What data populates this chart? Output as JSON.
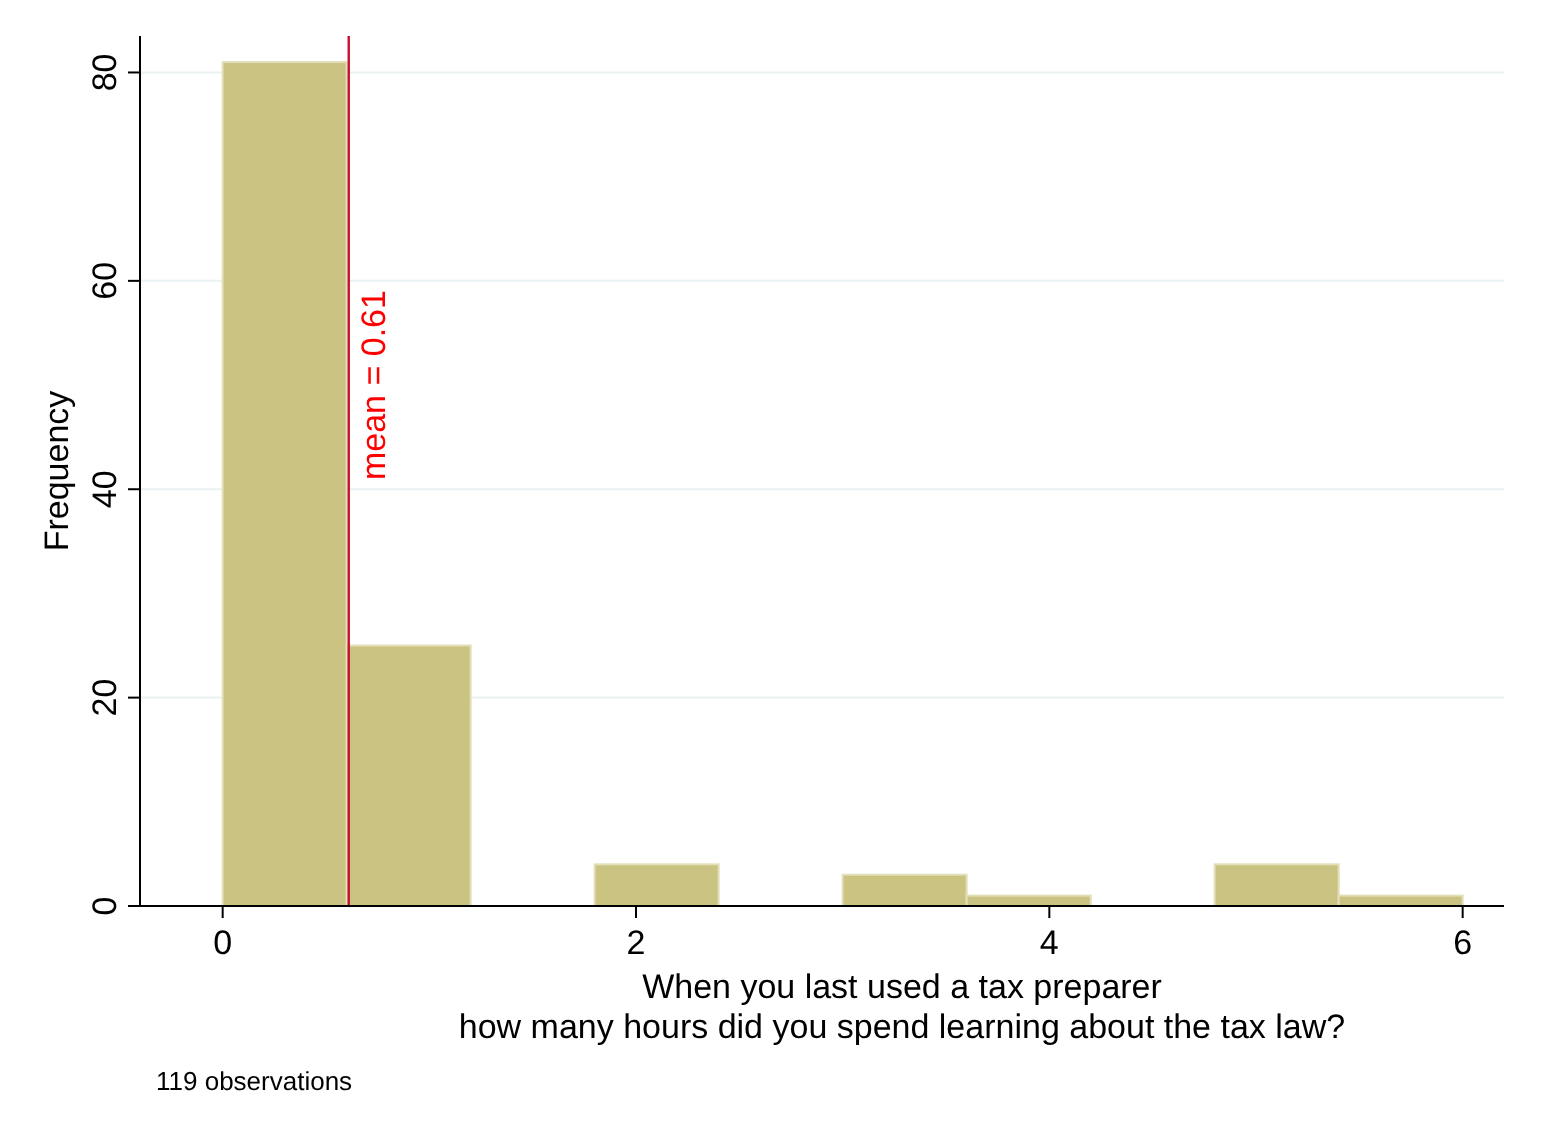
{
  "chart_data": {
    "type": "histogram",
    "ylabel": "Frequency",
    "xlabel": "When you last used a tax preparer\nhow many hours did you spend learning about the tax law?",
    "bins": [
      0,
      0.6,
      1.2,
      1.8,
      2.4,
      3.0,
      3.6,
      4.2,
      4.8,
      5.4,
      6.0
    ],
    "values": [
      81,
      25,
      0,
      4,
      0,
      3,
      1,
      0,
      4,
      1
    ],
    "color": "#cbc382",
    "xlim": [
      -0.4,
      6.2
    ],
    "xticks": [
      0,
      2,
      4,
      6
    ],
    "ylim": [
      0,
      83.5
    ],
    "yticks": [
      0,
      20,
      40,
      60,
      80
    ],
    "grid": "y",
    "ref_lines": [
      {
        "axis": "x",
        "value": 0.61,
        "label": "mean = 0.61",
        "color": "#c8102e"
      }
    ],
    "annotations": [
      "119 observations"
    ]
  }
}
